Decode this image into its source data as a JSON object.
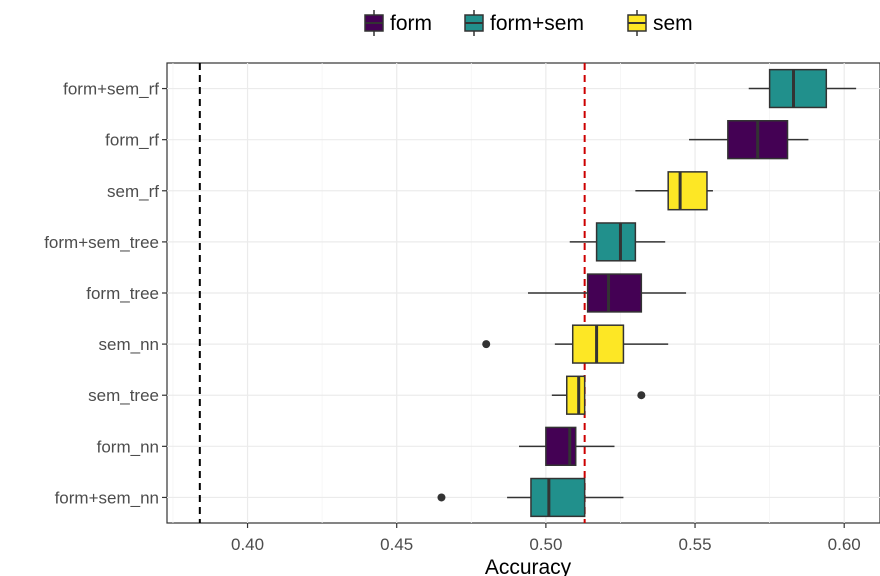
{
  "chart_data": {
    "type": "boxplot",
    "orientation": "horizontal",
    "xlabel": "Accuracy",
    "ylabel": "",
    "xlim": [
      0.373,
      0.612
    ],
    "xticks": [
      0.4,
      0.45,
      0.5,
      0.55,
      0.6
    ],
    "xtick_labels": [
      "0.40",
      "0.45",
      "0.50",
      "0.55",
      "0.60"
    ],
    "grid": true,
    "legend_position": "top",
    "legend": [
      {
        "name": "form",
        "color": "#440154"
      },
      {
        "name": "form+sem",
        "color": "#21908C"
      },
      {
        "name": "sem",
        "color": "#FDE725"
      }
    ],
    "reference_lines": [
      {
        "value": 0.384,
        "color": "#000000",
        "style": "dashed"
      },
      {
        "value": 0.513,
        "color": "#CC0000",
        "style": "dashed"
      }
    ],
    "boxes": [
      {
        "label": "form+sem_rf",
        "group": "form+sem",
        "whisker_low": 0.568,
        "q1": 0.575,
        "median": 0.583,
        "q3": 0.594,
        "whisker_high": 0.604,
        "outliers": []
      },
      {
        "label": "form_rf",
        "group": "form",
        "whisker_low": 0.548,
        "q1": 0.561,
        "median": 0.571,
        "q3": 0.581,
        "whisker_high": 0.588,
        "outliers": []
      },
      {
        "label": "sem_rf",
        "group": "sem",
        "whisker_low": 0.53,
        "q1": 0.541,
        "median": 0.545,
        "q3": 0.554,
        "whisker_high": 0.556,
        "outliers": []
      },
      {
        "label": "form+sem_tree",
        "group": "form+sem",
        "whisker_low": 0.508,
        "q1": 0.517,
        "median": 0.525,
        "q3": 0.53,
        "whisker_high": 0.54,
        "outliers": []
      },
      {
        "label": "form_tree",
        "group": "form",
        "whisker_low": 0.494,
        "q1": 0.514,
        "median": 0.521,
        "q3": 0.532,
        "whisker_high": 0.547,
        "outliers": []
      },
      {
        "label": "sem_nn",
        "group": "sem",
        "whisker_low": 0.503,
        "q1": 0.509,
        "median": 0.517,
        "q3": 0.526,
        "whisker_high": 0.541,
        "outliers": [
          0.48
        ]
      },
      {
        "label": "sem_tree",
        "group": "sem",
        "whisker_low": 0.502,
        "q1": 0.507,
        "median": 0.511,
        "q3": 0.513,
        "whisker_high": 0.513,
        "outliers": [
          0.532
        ]
      },
      {
        "label": "form_nn",
        "group": "form",
        "whisker_low": 0.491,
        "q1": 0.5,
        "median": 0.508,
        "q3": 0.51,
        "whisker_high": 0.523,
        "outliers": []
      },
      {
        "label": "form+sem_nn",
        "group": "form+sem",
        "whisker_low": 0.487,
        "q1": 0.495,
        "median": 0.501,
        "q3": 0.513,
        "whisker_high": 0.526,
        "outliers": [
          0.465
        ]
      }
    ]
  }
}
